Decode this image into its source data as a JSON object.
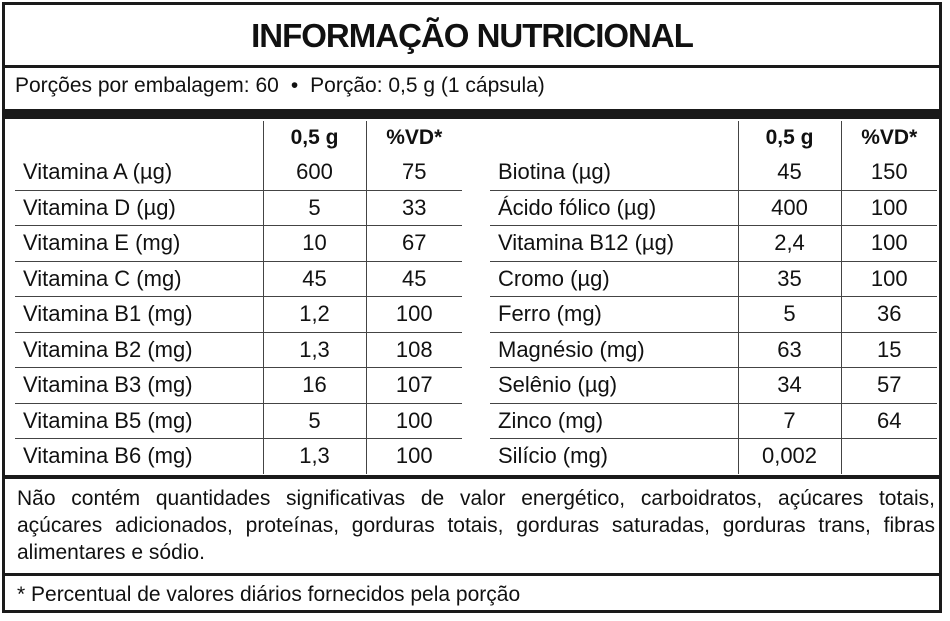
{
  "title": "INFORMAÇÃO NUTRICIONAL",
  "portion": {
    "servings": "Porções por embalagem: 60",
    "separator": "•",
    "serving_size": "Porção: 0,5 g (1 cápsula)"
  },
  "headers": {
    "amount": "0,5 g",
    "dv": "%VD*"
  },
  "left_rows": [
    {
      "name": "Vitamina A (µg)",
      "amount": "600",
      "dv": "75"
    },
    {
      "name": "Vitamina D (µg)",
      "amount": "5",
      "dv": "33"
    },
    {
      "name": "Vitamina E (mg)",
      "amount": "10",
      "dv": "67"
    },
    {
      "name": "Vitamina C (mg)",
      "amount": "45",
      "dv": "45"
    },
    {
      "name": "Vitamina B1 (mg)",
      "amount": "1,2",
      "dv": "100"
    },
    {
      "name": "Vitamina B2 (mg)",
      "amount": "1,3",
      "dv": "108"
    },
    {
      "name": "Vitamina B3 (mg)",
      "amount": "16",
      "dv": "107"
    },
    {
      "name": "Vitamina B5 (mg)",
      "amount": "5",
      "dv": "100"
    },
    {
      "name": "Vitamina B6 (mg)",
      "amount": "1,3",
      "dv": "100"
    }
  ],
  "right_rows": [
    {
      "name": "Biotina (µg)",
      "amount": "45",
      "dv": "150"
    },
    {
      "name": "Ácido fólico (µg)",
      "amount": "400",
      "dv": "100"
    },
    {
      "name": "Vitamina B12 (µg)",
      "amount": "2,4",
      "dv": "100"
    },
    {
      "name": "Cromo (µg)",
      "amount": "35",
      "dv": "100"
    },
    {
      "name": "Ferro (mg)",
      "amount": "5",
      "dv": "36"
    },
    {
      "name": "Magnésio (mg)",
      "amount": "63",
      "dv": "15"
    },
    {
      "name": "Selênio (µg)",
      "amount": "34",
      "dv": "57"
    },
    {
      "name": "Zinco (mg)",
      "amount": "7",
      "dv": "64"
    },
    {
      "name": "Silício (mg)",
      "amount": "0,002",
      "dv": ""
    }
  ],
  "footnote": "Não contém quantidades significativas de valor energético, carboidratos, açúcares totais, açúcares adicionados, proteínas, gorduras totais, gorduras saturadas, gorduras trans, fibras alimentares e sódio.",
  "vd_note": "* Percentual de valores diários fornecidos pela porção"
}
